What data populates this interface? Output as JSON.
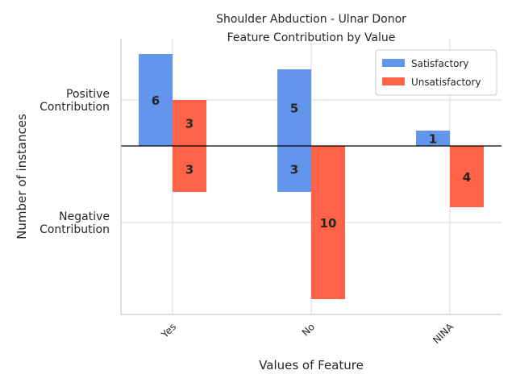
{
  "chart_data": {
    "type": "bar",
    "title": "Shoulder Abduction - Ulnar Donor",
    "subtitle": "Feature Contribution by Value",
    "xlabel": "Values of Feature",
    "ylabel": "Number of instances",
    "ytick_labels": [
      {
        "value": 3,
        "label": "Positive\nContribution"
      },
      {
        "value": -5,
        "label": "Negative\nContribution"
      }
    ],
    "ylim": [
      -11,
      7
    ],
    "categories": [
      "Yes",
      "No",
      "NINA"
    ],
    "series": [
      {
        "name": "Satisfactory",
        "color": "#6495ED",
        "positive": [
          6,
          5,
          1
        ],
        "negative": [
          0,
          3,
          0
        ],
        "labels": [
          [
            6,
            null
          ],
          [
            5,
            3
          ],
          [
            1,
            null
          ]
        ]
      },
      {
        "name": "Unsatisfactory",
        "color": "#FF6347",
        "positive": [
          3,
          0,
          0
        ],
        "negative": [
          3,
          10,
          4
        ],
        "labels": [
          [
            3,
            3
          ],
          [
            null,
            10
          ],
          [
            null,
            4
          ]
        ]
      }
    ],
    "legend_position": "top-right",
    "grid": true,
    "zero_line": true
  }
}
